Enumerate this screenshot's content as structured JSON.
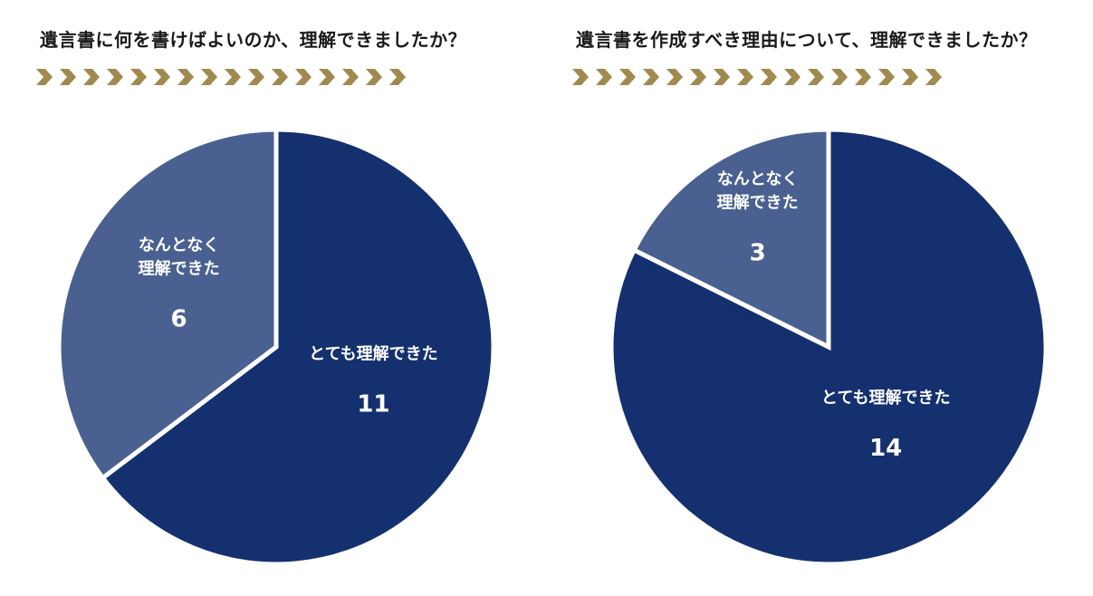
{
  "colors": {
    "dark_navy": "#15306f",
    "slate_blue": "#4a6090",
    "gold": "#a08a4e",
    "separator": "#ffffff"
  },
  "chevron_count": 16,
  "chart_data": [
    {
      "type": "pie",
      "title": "遺言書に何を書けばよいのか、理解できましたか？",
      "slices": [
        {
          "label": "とても理解できた",
          "value": 11,
          "color": "#15306f"
        },
        {
          "label": "なんとなく理解できた",
          "label_lines": [
            "なんとなく",
            "理解できた"
          ],
          "value": 6,
          "color": "#4a6090"
        }
      ],
      "start": "12 o'clock",
      "direction": "clockwise",
      "legend": "none"
    },
    {
      "type": "pie",
      "title": "遺言書を作成すべき理由について、理解できましたか？",
      "slices": [
        {
          "label": "とても理解できた",
          "value": 14,
          "color": "#15306f"
        },
        {
          "label": "なんとなく理解できた",
          "label_lines": [
            "なんとなく",
            "理解できた"
          ],
          "value": 3,
          "color": "#4a6090"
        }
      ],
      "start": "12 o'clock",
      "direction": "clockwise",
      "legend": "none"
    }
  ]
}
